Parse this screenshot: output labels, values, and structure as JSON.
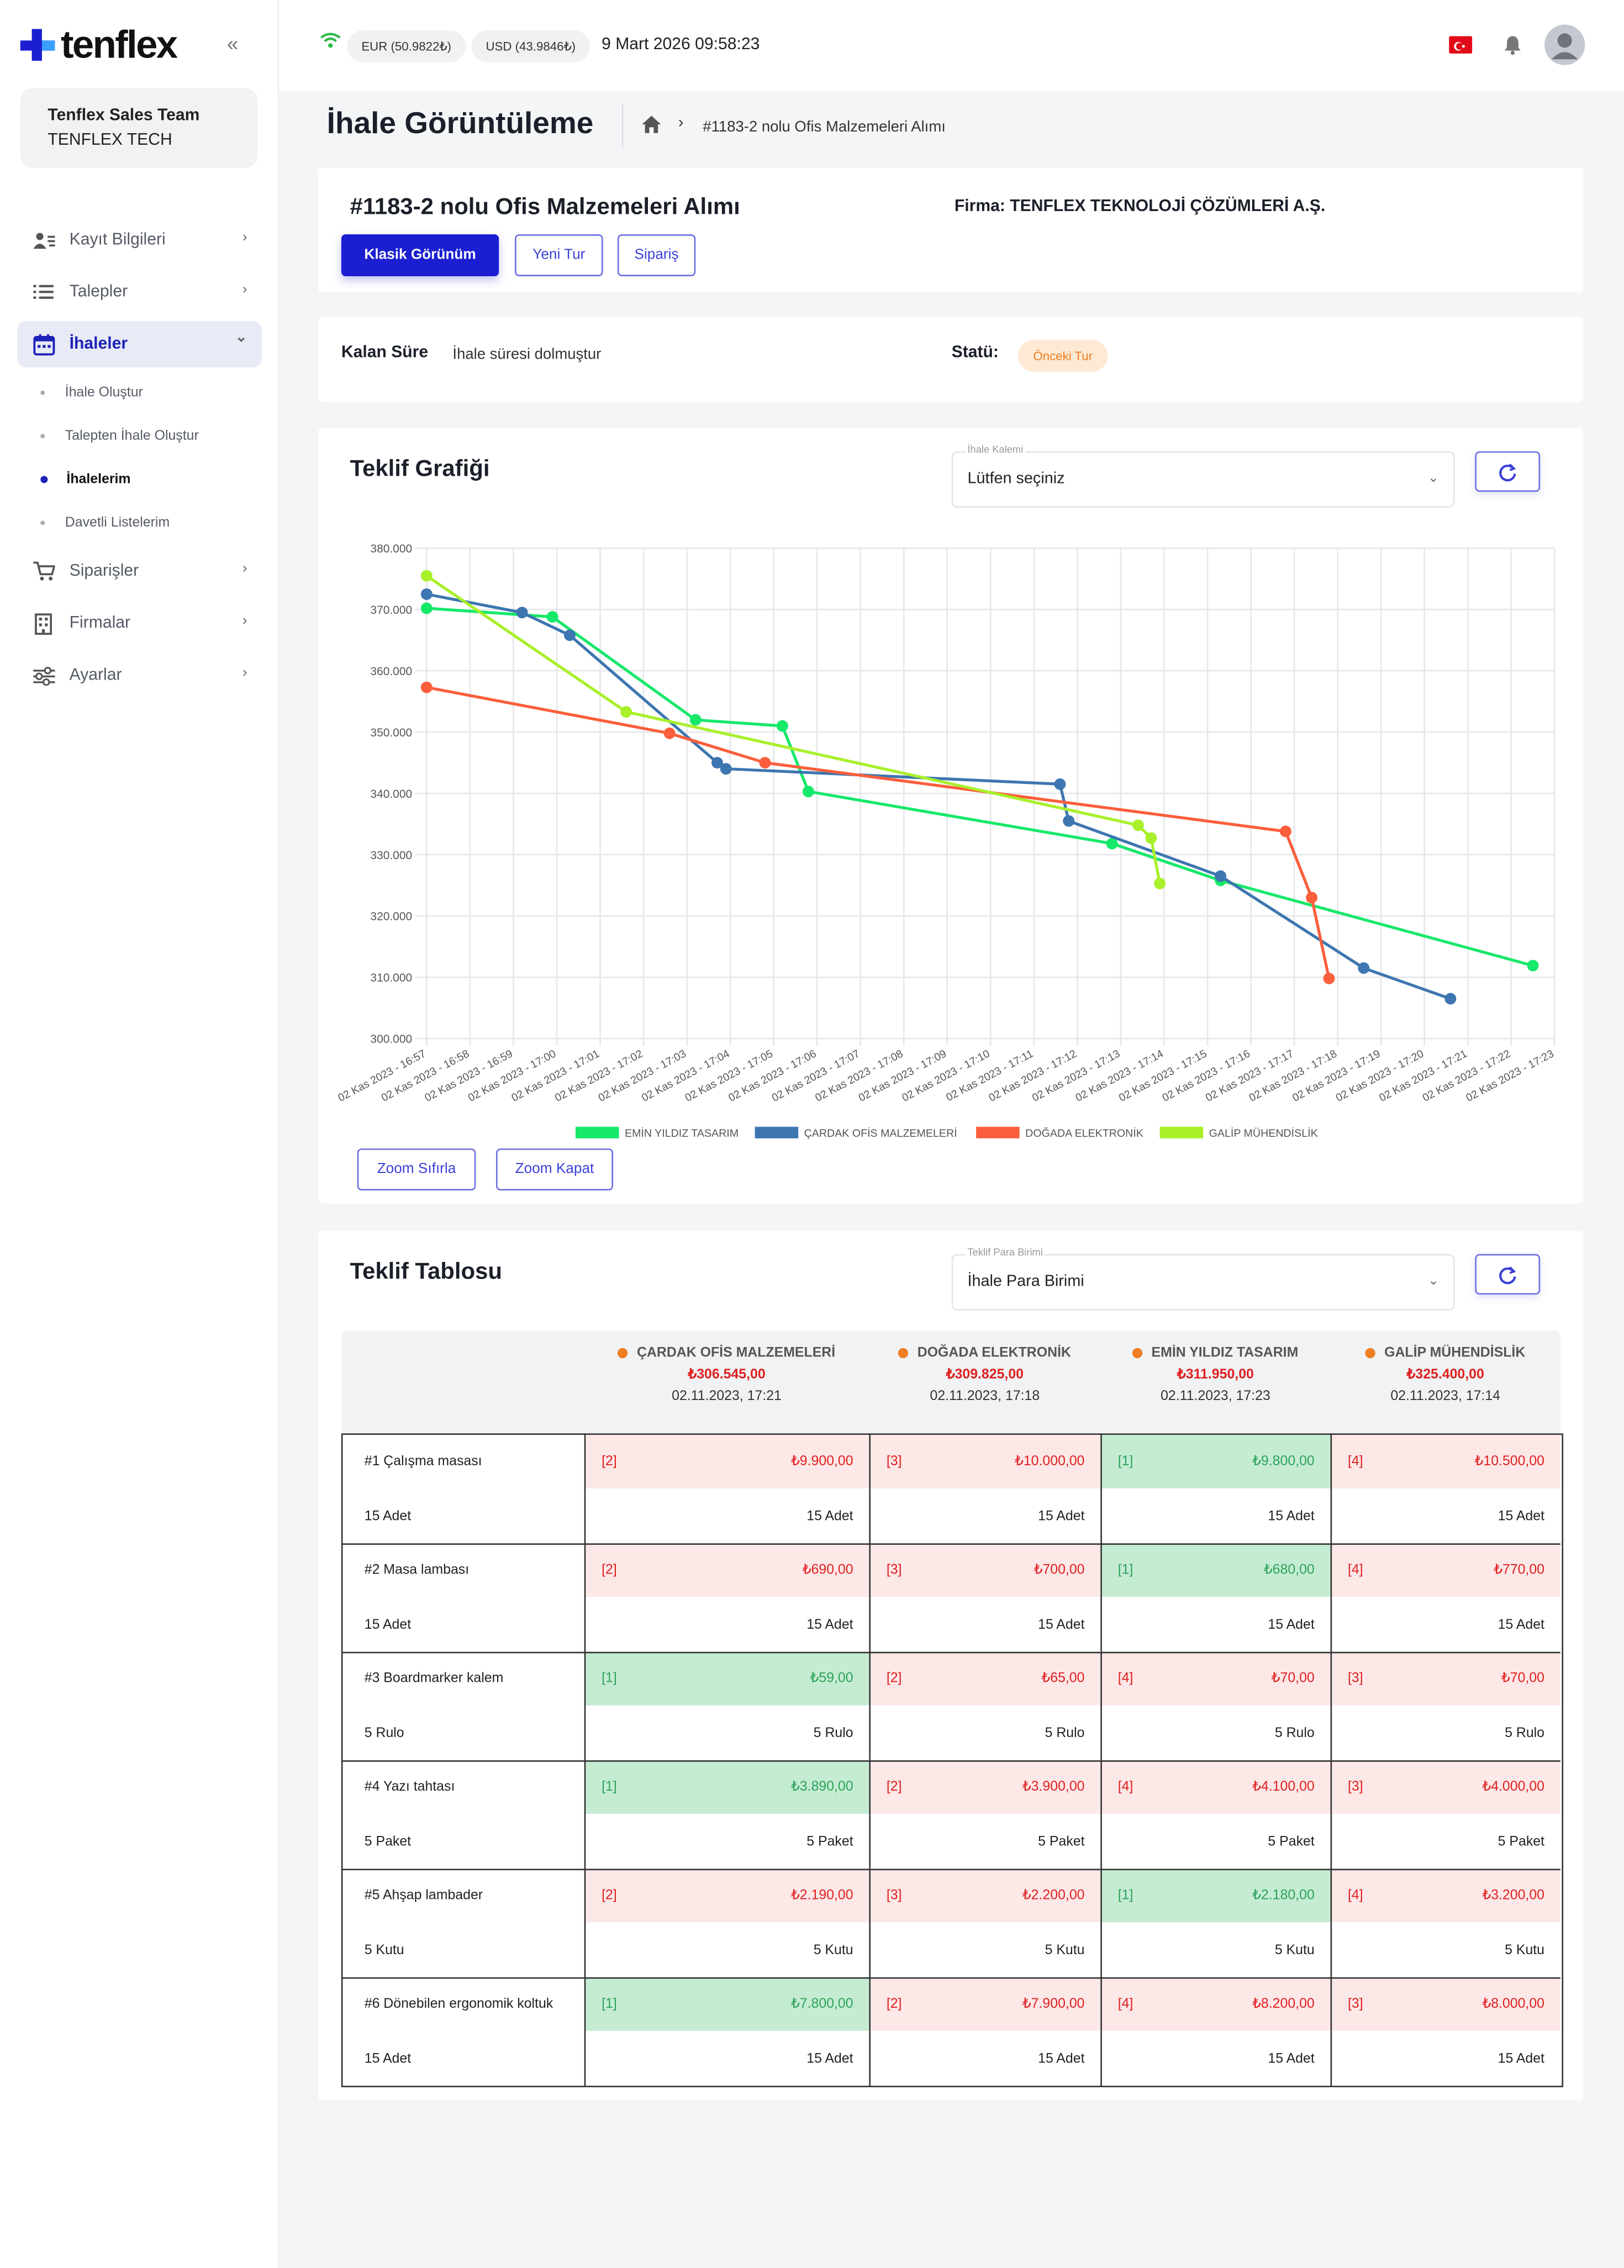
{
  "brand": {
    "name": "tenflex"
  },
  "team": {
    "name": "Tenflex Sales Team",
    "company": "TENFLEX TECH"
  },
  "nav": [
    {
      "label": "Kayıt Bilgileri",
      "icon": "user-list-icon",
      "y": 166
    },
    {
      "label": "Talepler",
      "icon": "list-icon",
      "y": 202
    },
    {
      "label": "İhaleler",
      "icon": "calendar-icon",
      "y": 238
    },
    {
      "label": "Siparişler",
      "icon": "cart-icon",
      "y": 395
    },
    {
      "label": "Firmalar",
      "icon": "building-icon",
      "y": 431
    },
    {
      "label": "Ayarlar",
      "icon": "sliders-icon",
      "y": 467
    }
  ],
  "subnav": [
    "İhale Oluştur",
    "Talepten İhale Oluştur",
    "İhalelerim",
    "Davetli Listelerim"
  ],
  "header": {
    "eur": "EUR (50.9822₺)",
    "usd": "USD (43.9846₺)",
    "datetime": "9 Mart 2026 09:58:23"
  },
  "page": {
    "title": "İhale Görüntüleme",
    "breadcrumb": "#1183-2 nolu Ofis Malzemeleri Alımı"
  },
  "tender": {
    "title": "#1183-2 nolu Ofis Malzemeleri Alımı",
    "firm": "Firma: TENFLEX TEKNOLOJİ ÇÖZÜMLERİ A.Ş.",
    "btn_classic": "Klasik Görünüm",
    "btn_new_round": "Yeni Tur",
    "btn_order": "Sipariş"
  },
  "status": {
    "remaining_label": "Kalan Süre",
    "remaining_value": "İhale süresi dolmuştur",
    "status_label": "Statü:",
    "status_badge": "Önceki Tur"
  },
  "chart_card": {
    "title": "Teklif Grafiği",
    "select_label": "İhale Kalemi",
    "select_value": "Lütfen seçiniz",
    "zoom_reset": "Zoom Sıfırla",
    "zoom_off": "Zoom Kapat"
  },
  "chart_data": {
    "type": "line",
    "ylim": [
      300000,
      380000
    ],
    "yticks": [
      "300.000",
      "310.000",
      "320.000",
      "330.000",
      "340.000",
      "350.000",
      "360.000",
      "370.000",
      "380.000"
    ],
    "ytick_values": [
      300000,
      310000,
      320000,
      330000,
      340000,
      350000,
      360000,
      370000,
      380000
    ],
    "xlim": [
      0,
      26
    ],
    "categories": [
      "02 Kas 2023 - 16:57",
      "02 Kas 2023 - 16:58",
      "02 Kas 2023 - 16:59",
      "02 Kas 2023 - 17:00",
      "02 Kas 2023 - 17:01",
      "02 Kas 2023 - 17:02",
      "02 Kas 2023 - 17:03",
      "02 Kas 2023 - 17:04",
      "02 Kas 2023 - 17:05",
      "02 Kas 2023 - 17:06",
      "02 Kas 2023 - 17:07",
      "02 Kas 2023 - 17:08",
      "02 Kas 2023 - 17:09",
      "02 Kas 2023 - 17:10",
      "02 Kas 2023 - 17:11",
      "02 Kas 2023 - 17:12",
      "02 Kas 2023 - 17:13",
      "02 Kas 2023 - 17:14",
      "02 Kas 2023 - 17:15",
      "02 Kas 2023 - 17:16",
      "02 Kas 2023 - 17:17",
      "02 Kas 2023 - 17:18",
      "02 Kas 2023 - 17:19",
      "02 Kas 2023 - 17:20",
      "02 Kas 2023 - 17:21",
      "02 Kas 2023 - 17:22",
      "02 Kas 2023 - 17:23"
    ],
    "legend_position": "bottom",
    "grid": true,
    "series": [
      {
        "name": "EMİN YILDIZ TASARIM",
        "color": "#16e86a",
        "points": [
          [
            0,
            370200
          ],
          [
            2.9,
            368800
          ],
          [
            6.2,
            352000
          ],
          [
            8.2,
            351000
          ],
          [
            8.8,
            340300
          ],
          [
            15.8,
            331800
          ],
          [
            18.3,
            325800
          ],
          [
            25.5,
            311900
          ]
        ]
      },
      {
        "name": "ÇARDAK OFİS MALZEMELERİ",
        "color": "#3d76b0",
        "points": [
          [
            0,
            372500
          ],
          [
            2.2,
            369500
          ],
          [
            3.3,
            365800
          ],
          [
            6.7,
            345000
          ],
          [
            6.9,
            344000
          ],
          [
            14.6,
            341500
          ],
          [
            14.8,
            335500
          ],
          [
            18.3,
            326500
          ],
          [
            21.6,
            311500
          ],
          [
            23.6,
            306500
          ]
        ]
      },
      {
        "name": "DOĞADA ELEKTRONİK",
        "color": "#fb5e3c",
        "points": [
          [
            0,
            357300
          ],
          [
            5.6,
            349800
          ],
          [
            7.8,
            345000
          ],
          [
            19.8,
            333800
          ],
          [
            20.4,
            323000
          ],
          [
            20.8,
            309800
          ]
        ]
      },
      {
        "name": "GALİP MÜHENDİSLİK",
        "color": "#a8f02a",
        "points": [
          [
            0,
            375500
          ],
          [
            4.6,
            353300
          ],
          [
            16.4,
            334800
          ],
          [
            16.7,
            332700
          ],
          [
            16.9,
            325300
          ]
        ]
      }
    ]
  },
  "table_card": {
    "title": "Teklif Tablosu",
    "select_label": "Teklif Para Birimi",
    "select_value": "İhale Para Birimi"
  },
  "suppliers": [
    {
      "name": "ÇARDAK OFİS MALZEMELERİ",
      "total": "₺306.545,00",
      "date": "02.11.2023, 17:21"
    },
    {
      "name": "DOĞADA ELEKTRONİK",
      "total": "₺309.825,00",
      "date": "02.11.2023, 17:18"
    },
    {
      "name": "EMİN YILDIZ TASARIM",
      "total": "₺311.950,00",
      "date": "02.11.2023, 17:23"
    },
    {
      "name": "GALİP MÜHENDİSLİK",
      "total": "₺325.400,00",
      "date": "02.11.2023, 17:14"
    }
  ],
  "items": [
    {
      "name": "#1 Çalışma masası",
      "qty": "15 Adet",
      "bids": [
        {
          "rank": "[2]",
          "price": "₺9.900,00",
          "best": false
        },
        {
          "rank": "[3]",
          "price": "₺10.000,00",
          "best": false
        },
        {
          "rank": "[1]",
          "price": "₺9.800,00",
          "best": true
        },
        {
          "rank": "[4]",
          "price": "₺10.500,00",
          "best": false
        }
      ]
    },
    {
      "name": "#2 Masa lambası",
      "qty": "15 Adet",
      "bids": [
        {
          "rank": "[2]",
          "price": "₺690,00",
          "best": false
        },
        {
          "rank": "[3]",
          "price": "₺700,00",
          "best": false
        },
        {
          "rank": "[1]",
          "price": "₺680,00",
          "best": true
        },
        {
          "rank": "[4]",
          "price": "₺770,00",
          "best": false
        }
      ]
    },
    {
      "name": "#3 Boardmarker kalem",
      "qty": "5 Rulo",
      "bids": [
        {
          "rank": "[1]",
          "price": "₺59,00",
          "best": true
        },
        {
          "rank": "[2]",
          "price": "₺65,00",
          "best": false
        },
        {
          "rank": "[4]",
          "price": "₺70,00",
          "best": false
        },
        {
          "rank": "[3]",
          "price": "₺70,00",
          "best": false
        }
      ]
    },
    {
      "name": "#4 Yazı tahtası",
      "qty": "5 Paket",
      "bids": [
        {
          "rank": "[1]",
          "price": "₺3.890,00",
          "best": true
        },
        {
          "rank": "[2]",
          "price": "₺3.900,00",
          "best": false
        },
        {
          "rank": "[4]",
          "price": "₺4.100,00",
          "best": false
        },
        {
          "rank": "[3]",
          "price": "₺4.000,00",
          "best": false
        }
      ]
    },
    {
      "name": "#5 Ahşap lambader",
      "qty": "5 Kutu",
      "bids": [
        {
          "rank": "[2]",
          "price": "₺2.190,00",
          "best": false
        },
        {
          "rank": "[3]",
          "price": "₺2.200,00",
          "best": false
        },
        {
          "rank": "[1]",
          "price": "₺2.180,00",
          "best": true
        },
        {
          "rank": "[4]",
          "price": "₺3.200,00",
          "best": false
        }
      ]
    },
    {
      "name": "#6 Dönebilen ergonomik koltuk",
      "qty": "15 Adet",
      "bids": [
        {
          "rank": "[1]",
          "price": "₺7.800,00",
          "best": true
        },
        {
          "rank": "[2]",
          "price": "₺7.900,00",
          "best": false
        },
        {
          "rank": "[4]",
          "price": "₺8.200,00",
          "best": false
        },
        {
          "rank": "[3]",
          "price": "₺8.000,00",
          "best": false
        }
      ]
    }
  ]
}
